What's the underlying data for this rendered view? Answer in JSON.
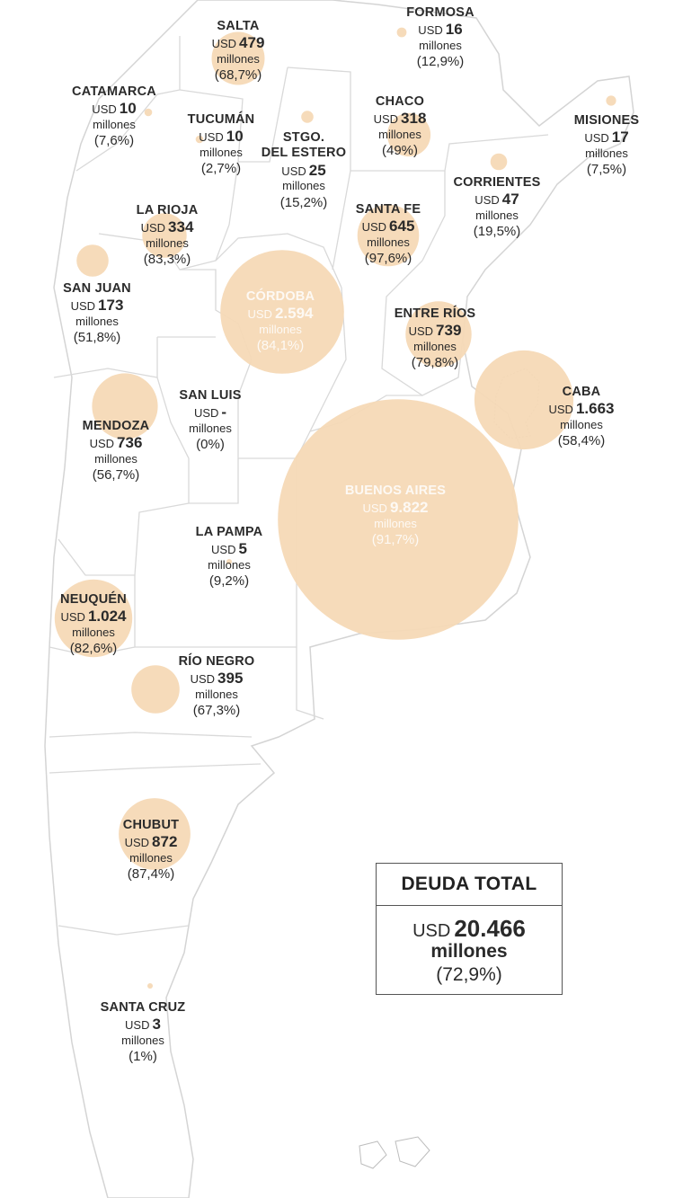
{
  "map": {
    "bubble_color": "#f6d9b6",
    "border_color": "#d4d4d4",
    "text_color": "#2a2a2a"
  },
  "provinces": {
    "salta": {
      "name": "SALTA",
      "usd": "USD",
      "amount": "479",
      "unit": "millones",
      "pct": "(68,7%)"
    },
    "formosa": {
      "name": "FORMOSA",
      "usd": "USD",
      "amount": "16",
      "unit": "millones",
      "pct": "(12,9%)"
    },
    "catamarca": {
      "name": "CATAMARCA",
      "usd": "USD",
      "amount": "10",
      "unit": "millones",
      "pct": "(7,6%)"
    },
    "tucuman": {
      "name": "TUCUMÁN",
      "usd": "USD",
      "amount": "10",
      "unit": "millones",
      "pct": "(2,7%)"
    },
    "chaco": {
      "name": "CHACO",
      "usd": "USD",
      "amount": "318",
      "unit": "millones",
      "pct": "(49%)"
    },
    "misiones": {
      "name": "MISIONES",
      "usd": "USD",
      "amount": "17",
      "unit": "millones",
      "pct": "(7,5%)"
    },
    "stgo": {
      "name1": "STGO.",
      "name2": "DEL ESTERO",
      "usd": "USD",
      "amount": "25",
      "unit": "millones",
      "pct": "(15,2%)"
    },
    "corrientes": {
      "name": "CORRIENTES",
      "usd": "USD",
      "amount": "47",
      "unit": "millones",
      "pct": "(19,5%)"
    },
    "la_rioja": {
      "name": "LA RIOJA",
      "usd": "USD",
      "amount": "334",
      "unit": "millones",
      "pct": "(83,3%)"
    },
    "santa_fe": {
      "name": "SANTA FE",
      "usd": "USD",
      "amount": "645",
      "unit": "millones",
      "pct": "(97,6%)"
    },
    "san_juan": {
      "name": "SAN JUAN",
      "usd": "USD",
      "amount": "173",
      "unit": "millones",
      "pct": "(51,8%)"
    },
    "cordoba": {
      "name": "CÓRDOBA",
      "usd": "USD",
      "amount": "2.594",
      "unit": "millones",
      "pct": "(84,1%)"
    },
    "entre_rios": {
      "name": "ENTRE RÍOS",
      "usd": "USD",
      "amount": "739",
      "unit": "millones",
      "pct": "(79,8%)"
    },
    "caba": {
      "name": "CABA",
      "usd": "USD",
      "amount": "1.663",
      "unit": "millones",
      "pct": "(58,4%)"
    },
    "san_luis": {
      "name": "SAN LUIS",
      "usd": "USD",
      "amount": "-",
      "unit": "millones",
      "pct": "(0%)"
    },
    "mendoza": {
      "name": "MENDOZA",
      "usd": "USD",
      "amount": "736",
      "unit": "millones",
      "pct": "(56,7%)"
    },
    "buenos_aires": {
      "name": "BUENOS AIRES",
      "usd": "USD",
      "amount": "9.822",
      "unit": "millones",
      "pct": "(91,7%)"
    },
    "la_pampa": {
      "name": "LA PAMPA",
      "usd": "USD",
      "amount": "5",
      "unit": "millones",
      "pct": "(9,2%)"
    },
    "neuquen": {
      "name": "NEUQUÉN",
      "usd": "USD",
      "amount": "1.024",
      "unit": "millones",
      "pct": "(82,6%)"
    },
    "rio_negro": {
      "name": "RÍO NEGRO",
      "usd": "USD",
      "amount": "395",
      "unit": "millones",
      "pct": "(67,3%)"
    },
    "chubut": {
      "name": "CHUBUT",
      "usd": "USD",
      "amount": "872",
      "unit": "millones",
      "pct": "(87,4%)"
    },
    "santa_cruz": {
      "name": "SANTA CRUZ",
      "usd": "USD",
      "amount": "3",
      "unit": "millones",
      "pct": "(1%)"
    }
  },
  "total": {
    "title": "DEUDA TOTAL",
    "usd": "USD",
    "amount": "20.466",
    "unit": "millones",
    "pct": "(72,9%)"
  }
}
